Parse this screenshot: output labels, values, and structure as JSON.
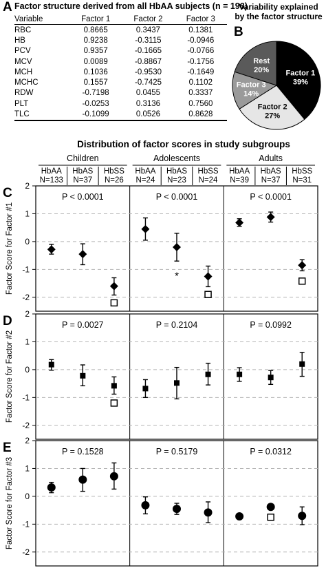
{
  "panel_a": {
    "letter": "A",
    "title": "Factor structure derived from all HbAA subjects (n = 196)",
    "headers": [
      "Variable",
      "Factor 1",
      "Factor 2",
      "Factor 3"
    ],
    "rows": [
      [
        "RBC",
        "0.8665",
        "0.3437",
        "0.1381"
      ],
      [
        "HB",
        "0.9238",
        "-0.3115",
        "-0.0946"
      ],
      [
        "PCV",
        "0.9357",
        "-0.1665",
        "-0.0766"
      ],
      [
        "MCV",
        "0.0089",
        "-0.8867",
        "-0.1756"
      ],
      [
        "MCH",
        "0.1036",
        "-0.9530",
        "-0.1649"
      ],
      [
        "MCHC",
        "0.1557",
        "-0.7425",
        "0.1102"
      ],
      [
        "RDW",
        "-0.7198",
        "0.0455",
        "0.3337"
      ],
      [
        "PLT",
        "-0.0253",
        "0.3136",
        "0.7560"
      ],
      [
        "TLC",
        "-0.1099",
        "0.0526",
        "0.8628"
      ]
    ]
  },
  "panel_b": {
    "letter": "B",
    "title_line1": "Variability explained",
    "title_line2": "by the factor structure"
  },
  "distribution": {
    "title": "Distribution of factor scores in study subgroups"
  },
  "chart_data": [
    {
      "type": "pie",
      "panel": "B",
      "slices": [
        {
          "label": "Factor 1",
          "pct_label": "39%",
          "value": 39,
          "color": "#000000",
          "text_color": "#ffffff"
        },
        {
          "label": "Factor 2",
          "pct_label": "27%",
          "value": 27,
          "color": "#e6e6e6",
          "text_color": "#000000"
        },
        {
          "label": "Factor 3",
          "pct_label": "14%",
          "value": 14,
          "color": "#9a9a9a",
          "text_color": "#ffffff"
        },
        {
          "label": "Rest",
          "pct_label": "20%",
          "value": 20,
          "color": "#5a5a5a",
          "text_color": "#ffffff"
        }
      ]
    },
    {
      "type": "scatter",
      "panels": [
        "C",
        "D",
        "E"
      ],
      "groups": [
        {
          "name": "Children",
          "subgroups": [
            {
              "name": "HbAA",
              "n": "N=133"
            },
            {
              "name": "HbAS",
              "n": "N=37"
            },
            {
              "name": "HbSS",
              "n": "N=26"
            }
          ]
        },
        {
          "name": "Adolescents",
          "subgroups": [
            {
              "name": "HbAA",
              "n": "N=24"
            },
            {
              "name": "HbAS",
              "n": "N=23"
            },
            {
              "name": "HbSS",
              "n": "N=24"
            }
          ]
        },
        {
          "name": "Adults",
          "subgroups": [
            {
              "name": "HbAA",
              "n": "N=39"
            },
            {
              "name": "HbAS",
              "n": "N=37"
            },
            {
              "name": "HbSS",
              "n": "N=31"
            }
          ]
        }
      ],
      "ylim": [
        -2.5,
        2
      ],
      "yticks": [
        "2",
        "1",
        "0",
        "-1",
        "-2"
      ],
      "grid": true,
      "factors": [
        {
          "letter": "C",
          "ylabel": "Factor Score for Factor #1",
          "marker": "diamond",
          "pvalues": [
            "P < 0.0001",
            "P < 0.0001",
            "P < 0.0001"
          ],
          "points": [
            {
              "mean": -0.28,
              "lo": -0.45,
              "hi": -0.1
            },
            {
              "mean": -0.45,
              "lo": -0.83,
              "hi": -0.08
            },
            {
              "mean": -1.6,
              "lo": -1.92,
              "hi": -1.3
            },
            {
              "mean": 0.45,
              "lo": 0.05,
              "hi": 0.85
            },
            {
              "mean": -0.2,
              "lo": -0.7,
              "hi": 0.3
            },
            {
              "mean": -1.25,
              "lo": -1.62,
              "hi": -0.88
            },
            {
              "mean": 0.68,
              "lo": 0.55,
              "hi": 0.82
            },
            {
              "mean": 0.88,
              "lo": 0.7,
              "hi": 1.06
            },
            {
              "mean": -0.85,
              "lo": -1.05,
              "hi": -0.65
            }
          ],
          "open_squares": [
            {
              "index": 2,
              "value": -2.2
            },
            {
              "index": 5,
              "value": -1.9
            },
            {
              "index": 8,
              "value": -1.42
            }
          ],
          "annotations": [
            {
              "index": 4,
              "text": "*",
              "value": -1.2
            }
          ]
        },
        {
          "letter": "D",
          "ylabel": "Factor Score for Factor #2",
          "marker": "square",
          "pvalues": [
            "P = 0.0027",
            "P = 0.2104",
            "P = 0.0992"
          ],
          "points": [
            {
              "mean": 0.18,
              "lo": -0.02,
              "hi": 0.36
            },
            {
              "mean": -0.22,
              "lo": -0.58,
              "hi": 0.17
            },
            {
              "mean": -0.58,
              "lo": -0.88,
              "hi": -0.26
            },
            {
              "mean": -0.68,
              "lo": -1.0,
              "hi": -0.36
            },
            {
              "mean": -0.48,
              "lo": -1.05,
              "hi": 0.08
            },
            {
              "mean": -0.17,
              "lo": -0.55,
              "hi": 0.23
            },
            {
              "mean": -0.17,
              "lo": -0.42,
              "hi": 0.07
            },
            {
              "mean": -0.28,
              "lo": -0.53,
              "hi": -0.03
            },
            {
              "mean": 0.2,
              "lo": -0.24,
              "hi": 0.62
            }
          ],
          "open_squares": [
            {
              "index": 2,
              "value": -1.2
            }
          ],
          "annotations": []
        },
        {
          "letter": "E",
          "ylabel": "Factor Score for Factor #3",
          "marker": "circle",
          "pvalues": [
            "P = 0.1528",
            "P = 0.5179",
            "P = 0.0312"
          ],
          "points": [
            {
              "mean": 0.32,
              "lo": 0.13,
              "hi": 0.5
            },
            {
              "mean": 0.6,
              "lo": 0.18,
              "hi": 1.0
            },
            {
              "mean": 0.72,
              "lo": 0.26,
              "hi": 1.2
            },
            {
              "mean": -0.32,
              "lo": -0.63,
              "hi": -0.02
            },
            {
              "mean": -0.45,
              "lo": -0.65,
              "hi": -0.25
            },
            {
              "mean": -0.58,
              "lo": -0.95,
              "hi": -0.2
            },
            {
              "mean": -0.72,
              "lo": -0.72,
              "hi": -0.72
            },
            {
              "mean": -0.38,
              "lo": -0.48,
              "hi": -0.28
            },
            {
              "mean": -0.7,
              "lo": -1.02,
              "hi": -0.38
            }
          ],
          "open_squares": [
            {
              "index": 7,
              "value": -0.75
            }
          ],
          "annotations": []
        }
      ]
    }
  ]
}
